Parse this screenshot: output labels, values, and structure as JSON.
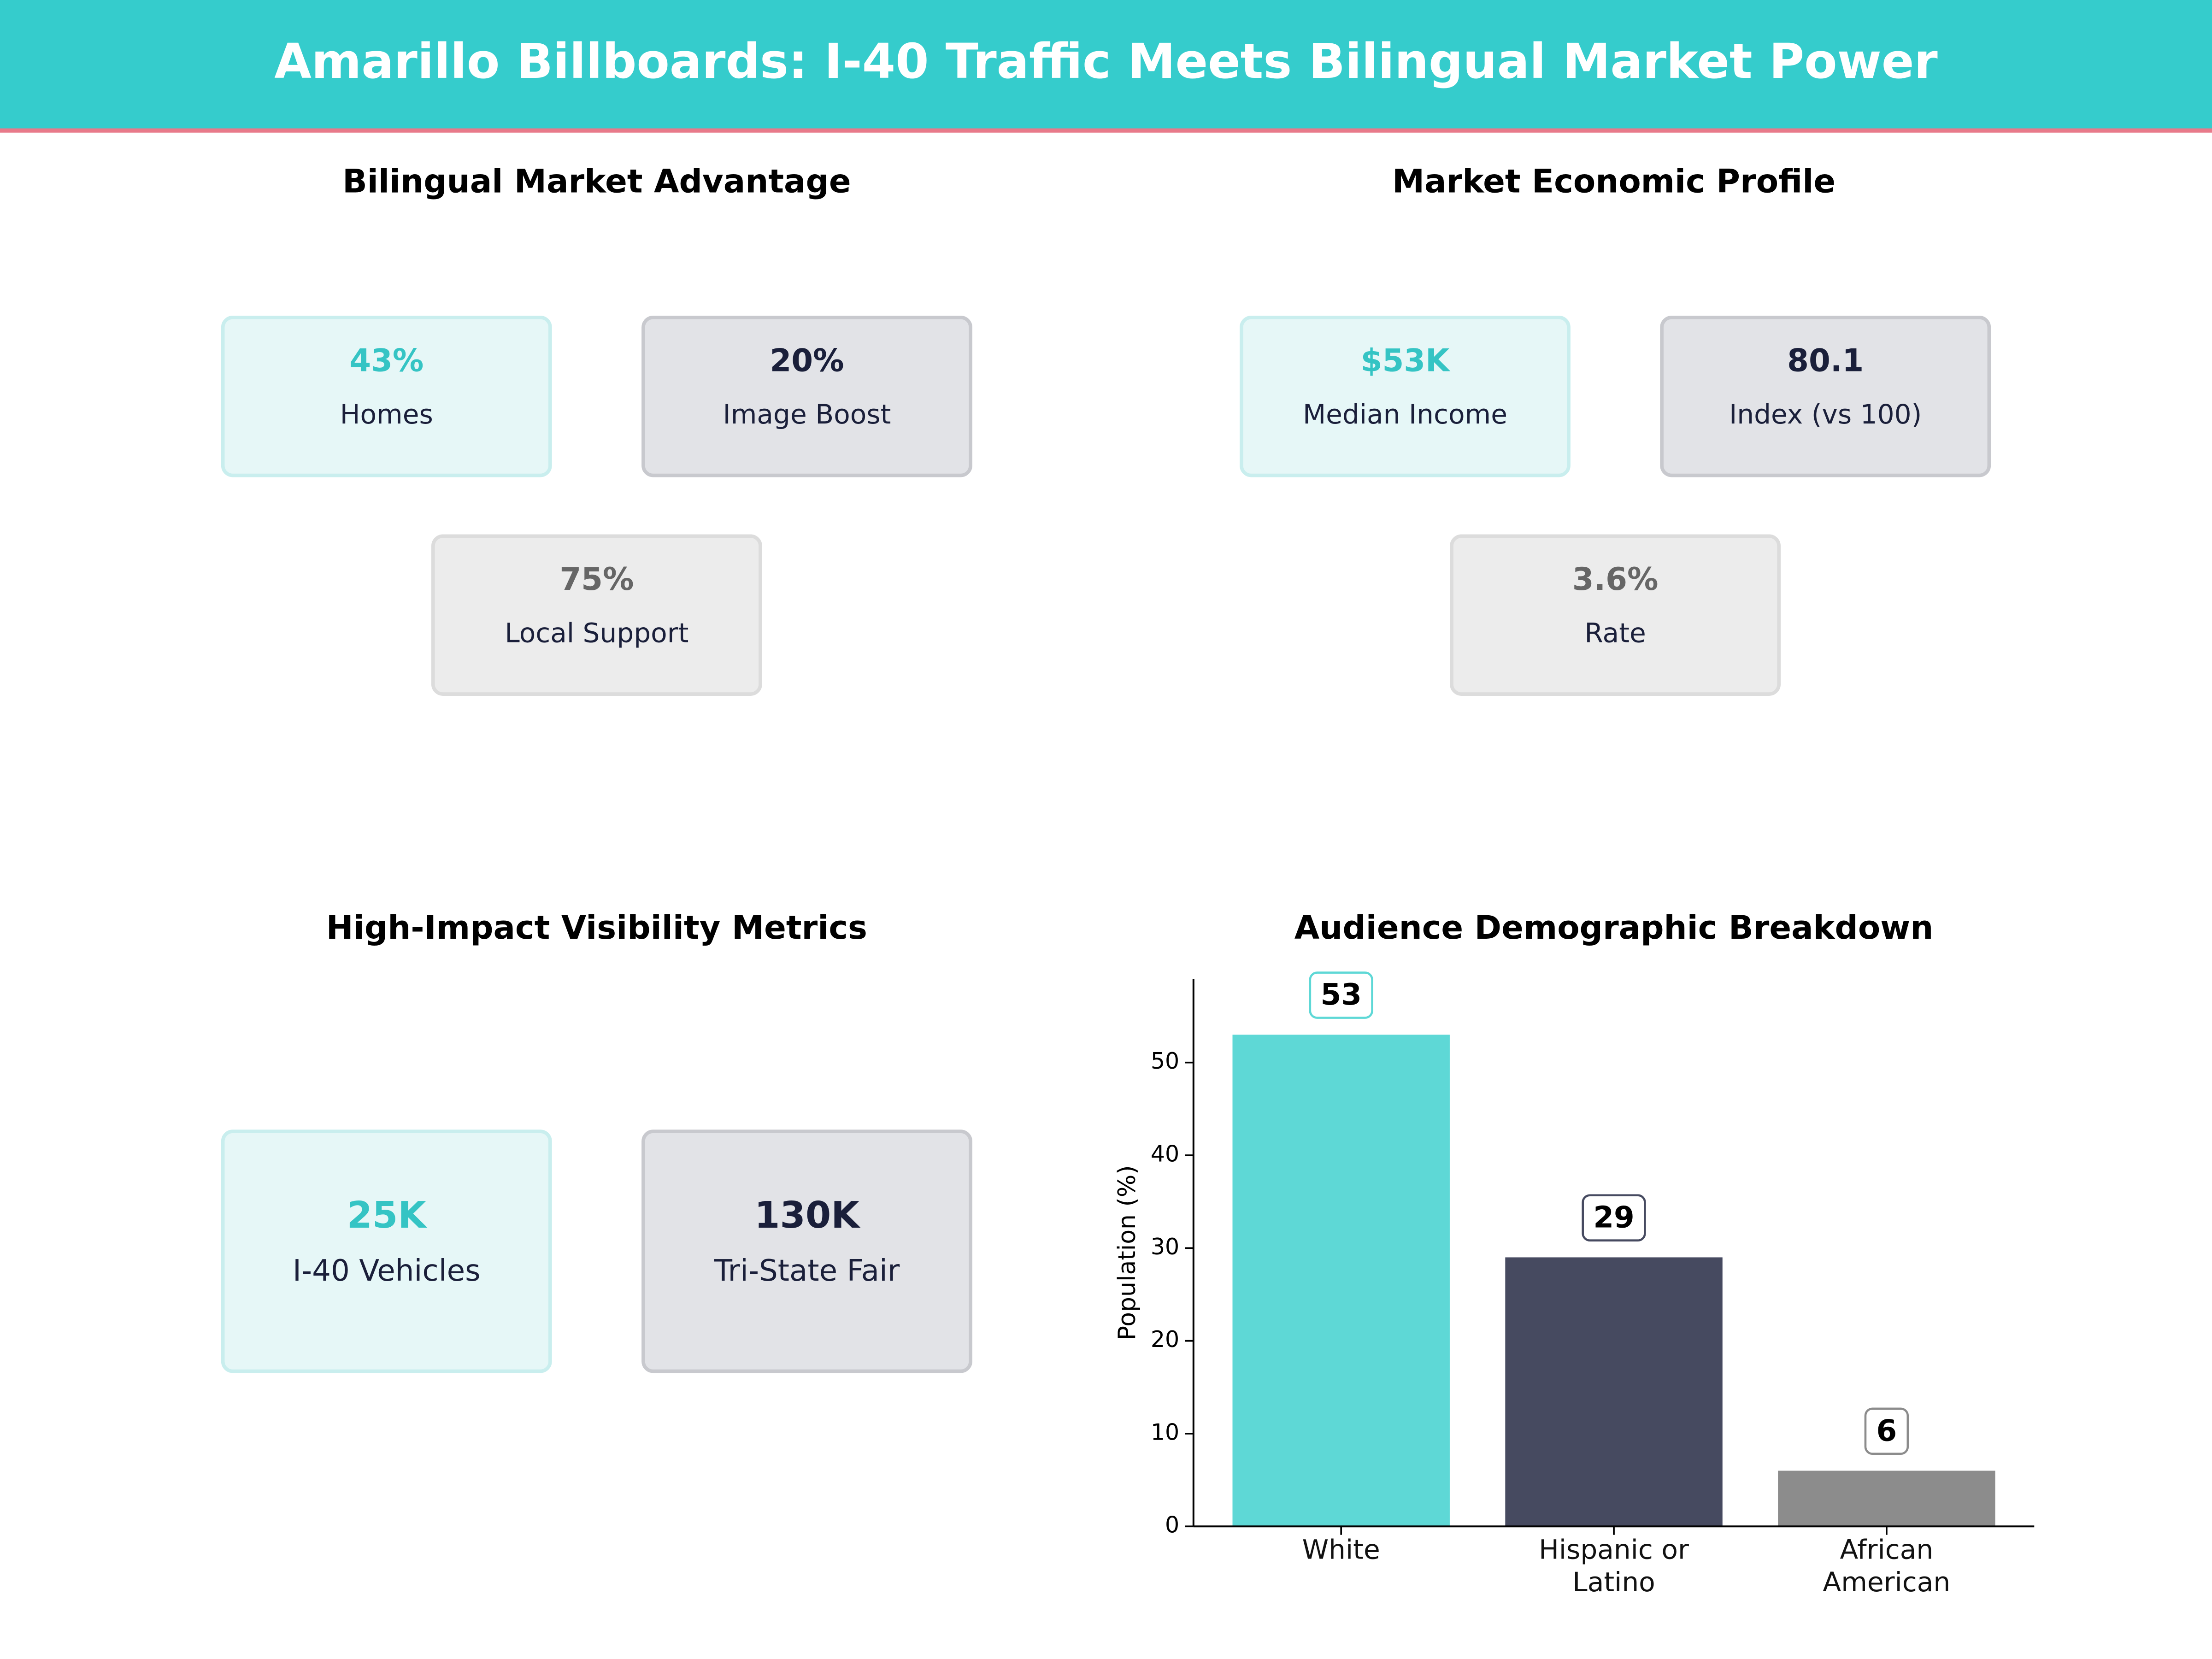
{
  "header": {
    "title": "Amarillo Billboards: I-40 Traffic Meets Bilingual Market Power"
  },
  "panels": [
    {
      "title": "Bilingual Market Advantage",
      "cards": [
        {
          "value": "43%",
          "label": "Homes"
        },
        {
          "value": "20%",
          "label": "Image Boost"
        },
        {
          "value": "75%",
          "label": "Local Support"
        }
      ]
    },
    {
      "title": "Market Economic Profile",
      "cards": [
        {
          "value": "$53K",
          "label": "Median Income"
        },
        {
          "value": "80.1",
          "label": "Index (vs 100)"
        },
        {
          "value": "3.6%",
          "label": "Rate"
        }
      ]
    },
    {
      "title": "High-Impact Visibility Metrics",
      "cards": [
        {
          "value": "25K",
          "label": "I-40 Vehicles"
        },
        {
          "value": "130K",
          "label": "Tri-State Fair"
        }
      ]
    }
  ],
  "chart_data": {
    "type": "bar",
    "title": "Audience Demographic Breakdown",
    "y_label": "Population (%)",
    "categories": [
      "White",
      "Hispanic or Latino",
      "African American"
    ],
    "values": [
      53,
      29,
      6
    ],
    "colors": [
      "#5ed8d6",
      "#464a60",
      "#8c8c8c"
    ],
    "ylim": [
      0,
      59
    ],
    "yticks": [
      0,
      10,
      20,
      30,
      40,
      50
    ]
  }
}
